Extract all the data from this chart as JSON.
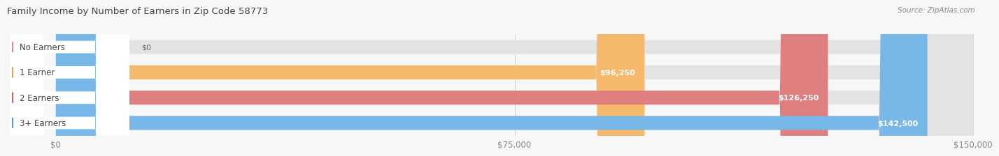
{
  "title": "Family Income by Number of Earners in Zip Code 58773",
  "source": "Source: ZipAtlas.com",
  "categories": [
    "No Earners",
    "1 Earner",
    "2 Earners",
    "3+ Earners"
  ],
  "values": [
    0,
    96250,
    126250,
    142500
  ],
  "bar_colors": [
    "#f48fb1",
    "#f6b96b",
    "#e07f7f",
    "#78b8e8"
  ],
  "label_dot_colors": [
    "#e87fa8",
    "#f0a050",
    "#d96060",
    "#5599d8"
  ],
  "value_labels": [
    "$0",
    "$96,250",
    "$126,250",
    "$142,500"
  ],
  "x_ticks": [
    0,
    75000,
    150000
  ],
  "x_tick_labels": [
    "$0",
    "$75,000",
    "$150,000"
  ],
  "x_max": 150000,
  "background_color": "#f7f7f7",
  "track_color": "#e3e3e3",
  "label_bg_color": "#ffffff",
  "title_color": "#444444",
  "source_color": "#888888",
  "tick_color": "#888888"
}
